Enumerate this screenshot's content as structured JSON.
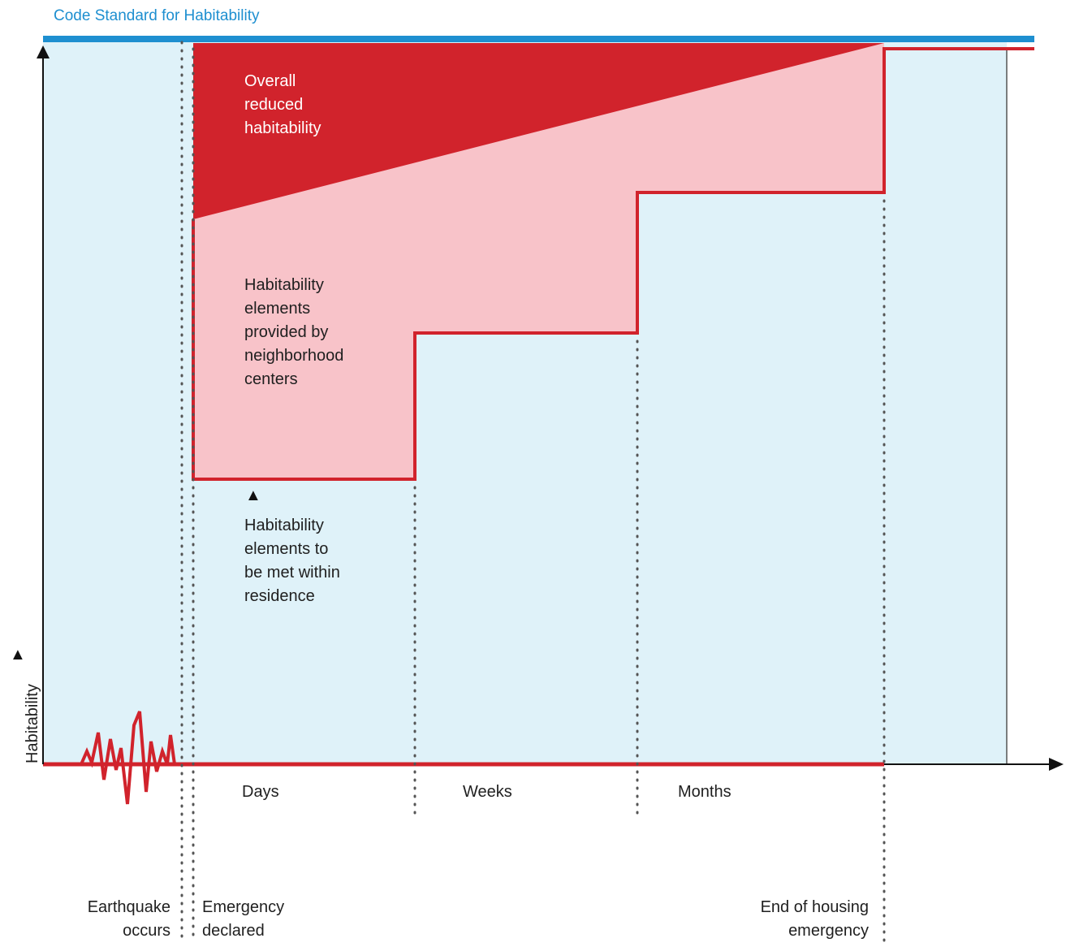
{
  "title": "Code Standard for Habitability",
  "labels": {
    "overall": [
      "Overall",
      "reduced",
      "habitability"
    ],
    "provided": [
      "Habitability",
      "elements",
      "provided by",
      "neighborhood",
      "centers"
    ],
    "within": [
      "Habitability",
      "elements to",
      "be met within",
      "residence"
    ],
    "y_axis": "Habitability"
  },
  "phases": [
    "Days",
    "Weeks",
    "Months"
  ],
  "events": {
    "earthquake": [
      "Earthquake",
      "occurs"
    ],
    "emergency": [
      "Emergency",
      "declared"
    ],
    "end": [
      "End of housing",
      "emergency"
    ]
  },
  "colors": {
    "background_fill": "#dff2f9",
    "code_line": "#1e8fd0",
    "red": "#d1232c",
    "pink": "#f8c3c9",
    "dark": "#333333"
  },
  "icons": {
    "up_arrow": "▲"
  }
}
